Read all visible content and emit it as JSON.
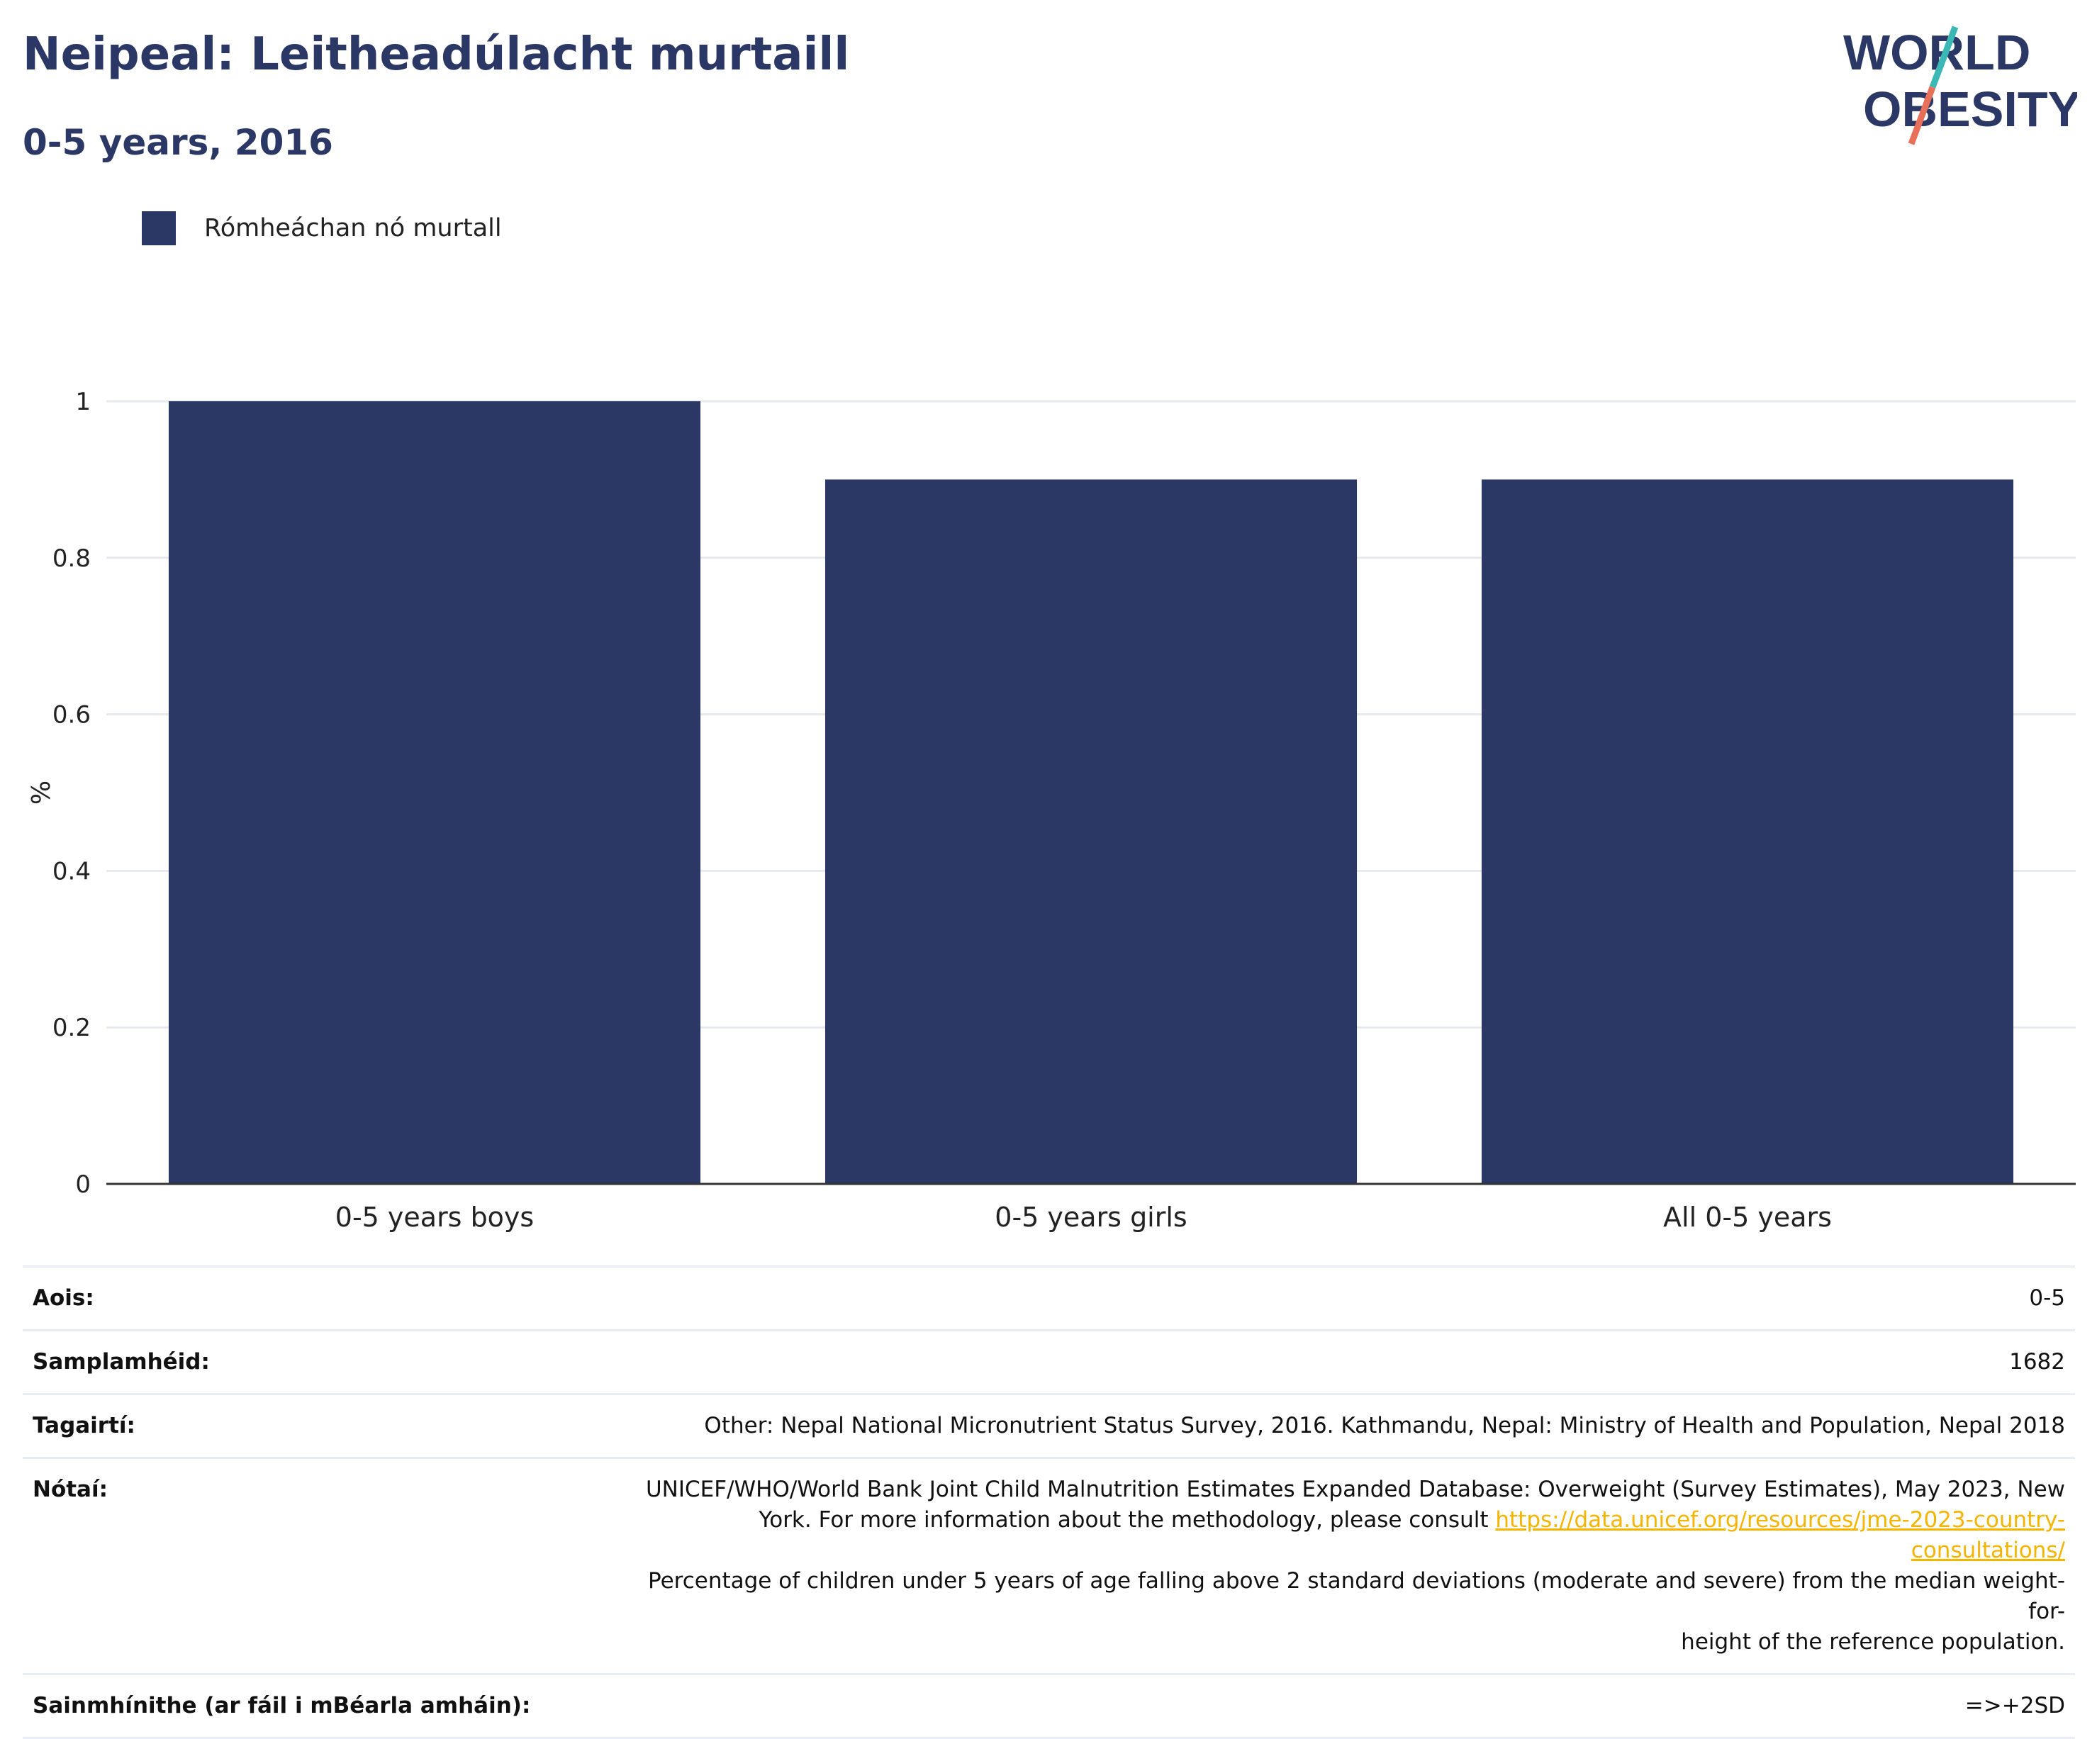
{
  "title": "Neipeal: Leitheadúlacht murtaill",
  "subtitle": "0-5 years, 2016",
  "logo": {
    "line1": "WORLD",
    "line2": "OBESITY",
    "colors": {
      "text": "#2b3764",
      "slash_top": "#3bb8b5",
      "slash_bottom": "#e8705a"
    }
  },
  "legend": [
    {
      "label": "Rómheáchan nó murtall",
      "color": "#2b3764"
    }
  ],
  "chart_data": {
    "type": "bar",
    "categories": [
      "0-5 years boys",
      "0-5 years girls",
      "All 0-5 years"
    ],
    "series": [
      {
        "name": "Rómheáchan nó murtall",
        "values": [
          1.0,
          0.9,
          0.9
        ],
        "color": "#2b3764"
      }
    ],
    "ylabel": "%",
    "ylim": [
      0,
      1
    ],
    "yticks": [
      0,
      0.2,
      0.4,
      0.6,
      0.8,
      1
    ],
    "ytick_labels": [
      "0",
      "0.2",
      "0.4",
      "0.6",
      "0.8",
      "1"
    ],
    "grid": true
  },
  "info": {
    "age": {
      "label": "Aois:",
      "value": "0-5"
    },
    "sample": {
      "label": "Samplamhéid:",
      "value": "1682"
    },
    "references": {
      "label": "Tagairtí:",
      "value": "Other: Nepal National Micronutrient Status Survey, 2016. Kathmandu, Nepal: Ministry of Health and Population, Nepal 2018"
    },
    "notes": {
      "label": "Nótaí:",
      "line1": "UNICEF/WHO/World Bank Joint Child Malnutrition Estimates Expanded Database: Overweight (Survey Estimates), May 2023, New",
      "line2_prefix": "York. For more information about the methodology, please consult ",
      "link": "https://data.unicef.org/resources/jme-2023-country-consultations/",
      "line3": "Percentage of children under 5 years of age falling above 2 standard deviations (moderate and severe) from the median weight-for-",
      "line4": "height of the reference population."
    },
    "definitions": {
      "label": "Sainmhínithe (ar fáil i mBéarla amháin):",
      "value": "=>+2SD"
    }
  }
}
